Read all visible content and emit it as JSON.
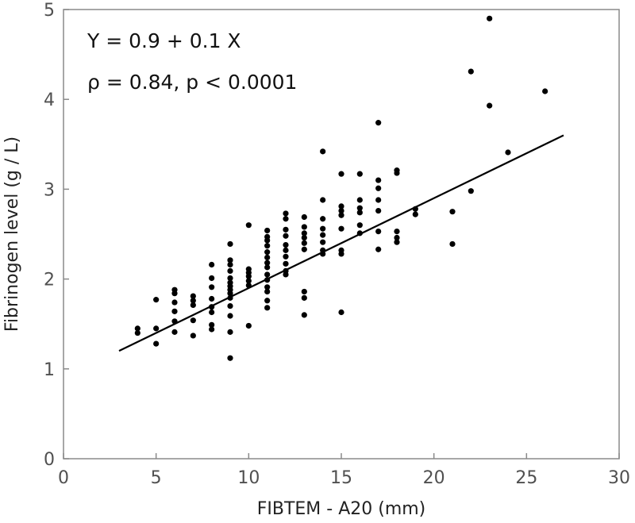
{
  "chart_data": {
    "type": "scatter",
    "xlabel": "FIBTEM - A20 (mm)",
    "ylabel": "Fibrinogen level (g / L)",
    "xlim": [
      0,
      30
    ],
    "ylim": [
      0,
      5
    ],
    "xticks": [
      "0",
      "5",
      "10",
      "15",
      "20",
      "25",
      "30"
    ],
    "yticks": [
      "0",
      "1",
      "2",
      "3",
      "4",
      "5"
    ],
    "grid": false,
    "annotations": [
      "Y = 0.9 + 0.1 X",
      "ρ = 0.84, p < 0.0001"
    ],
    "regression": {
      "intercept": 0.9,
      "slope": 0.1,
      "x_range": [
        3,
        27
      ]
    },
    "points": [
      [
        4,
        1.45
      ],
      [
        4,
        1.4
      ],
      [
        5,
        1.77
      ],
      [
        5,
        1.45
      ],
      [
        5,
        1.28
      ],
      [
        6,
        1.88
      ],
      [
        6,
        1.84
      ],
      [
        6,
        1.74
      ],
      [
        6,
        1.64
      ],
      [
        6,
        1.53
      ],
      [
        6,
        1.41
      ],
      [
        7,
        1.81
      ],
      [
        7,
        1.76
      ],
      [
        7,
        1.71
      ],
      [
        7,
        1.54
      ],
      [
        7,
        1.37
      ],
      [
        8,
        2.16
      ],
      [
        8,
        2.01
      ],
      [
        8,
        1.91
      ],
      [
        8,
        1.78
      ],
      [
        8,
        1.69
      ],
      [
        8,
        1.63
      ],
      [
        8,
        1.49
      ],
      [
        8,
        1.44
      ],
      [
        9,
        2.39
      ],
      [
        9,
        2.21
      ],
      [
        9,
        2.16
      ],
      [
        9,
        2.09
      ],
      [
        9,
        2.01
      ],
      [
        9,
        1.96
      ],
      [
        9,
        1.92
      ],
      [
        9,
        1.88
      ],
      [
        9,
        1.84
      ],
      [
        9,
        1.79
      ],
      [
        9,
        1.7
      ],
      [
        9,
        1.59
      ],
      [
        9,
        1.41
      ],
      [
        9,
        1.12
      ],
      [
        10,
        2.6
      ],
      [
        10,
        2.11
      ],
      [
        10,
        2.07
      ],
      [
        10,
        2.03
      ],
      [
        10,
        1.98
      ],
      [
        10,
        1.93
      ],
      [
        10,
        1.48
      ],
      [
        11,
        2.54
      ],
      [
        11,
        2.47
      ],
      [
        11,
        2.43
      ],
      [
        11,
        2.37
      ],
      [
        11,
        2.3
      ],
      [
        11,
        2.24
      ],
      [
        11,
        2.18
      ],
      [
        11,
        2.13
      ],
      [
        11,
        2.05
      ],
      [
        11,
        1.99
      ],
      [
        11,
        1.91
      ],
      [
        11,
        1.86
      ],
      [
        11,
        1.76
      ],
      [
        11,
        1.68
      ],
      [
        12,
        2.73
      ],
      [
        12,
        2.67
      ],
      [
        12,
        2.55
      ],
      [
        12,
        2.48
      ],
      [
        12,
        2.38
      ],
      [
        12,
        2.32
      ],
      [
        12,
        2.25
      ],
      [
        12,
        2.17
      ],
      [
        12,
        2.09
      ],
      [
        12,
        2.05
      ],
      [
        13,
        2.69
      ],
      [
        13,
        2.58
      ],
      [
        13,
        2.51
      ],
      [
        13,
        2.46
      ],
      [
        13,
        2.4
      ],
      [
        13,
        2.33
      ],
      [
        13,
        1.86
      ],
      [
        13,
        1.79
      ],
      [
        13,
        1.6
      ],
      [
        14,
        3.42
      ],
      [
        14,
        2.88
      ],
      [
        14,
        2.67
      ],
      [
        14,
        2.56
      ],
      [
        14,
        2.49
      ],
      [
        14,
        2.41
      ],
      [
        14,
        2.32
      ],
      [
        14,
        2.28
      ],
      [
        15,
        3.17
      ],
      [
        15,
        2.81
      ],
      [
        15,
        2.76
      ],
      [
        15,
        2.71
      ],
      [
        15,
        2.56
      ],
      [
        15,
        2.32
      ],
      [
        15,
        2.28
      ],
      [
        15,
        1.63
      ],
      [
        16,
        3.17
      ],
      [
        16,
        2.88
      ],
      [
        16,
        2.79
      ],
      [
        16,
        2.74
      ],
      [
        16,
        2.6
      ],
      [
        16,
        2.51
      ],
      [
        17,
        3.74
      ],
      [
        17,
        3.1
      ],
      [
        17,
        3.01
      ],
      [
        17,
        2.88
      ],
      [
        17,
        2.76
      ],
      [
        17,
        2.53
      ],
      [
        17,
        2.33
      ],
      [
        18,
        3.21
      ],
      [
        18,
        3.18
      ],
      [
        18,
        2.53
      ],
      [
        18,
        2.46
      ],
      [
        18,
        2.41
      ],
      [
        19,
        2.78
      ],
      [
        19,
        2.72
      ],
      [
        21,
        2.75
      ],
      [
        21,
        2.39
      ],
      [
        22,
        4.31
      ],
      [
        22,
        2.98
      ],
      [
        23,
        4.9
      ],
      [
        23,
        3.93
      ],
      [
        24,
        3.41
      ],
      [
        26,
        4.09
      ]
    ]
  }
}
